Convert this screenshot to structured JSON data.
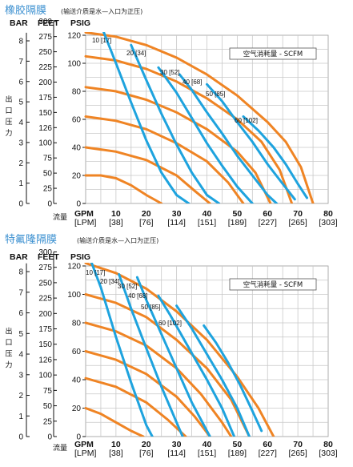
{
  "chart_data": [
    {
      "type": "line",
      "title": "橡胶隔膜",
      "subtitle": "(输送介质是水—入口为正压)",
      "axis_units": [
        "BAR",
        "FEET",
        "PSIG"
      ],
      "x_axis_label": "流量",
      "x_unit_primary": "GPM",
      "x_unit_secondary": "[LPM]",
      "x_ticks": [
        "10",
        "20",
        "30",
        "40",
        "50",
        "60",
        "70",
        "80"
      ],
      "x_ticks_lpm": [
        "[38]",
        "[76]",
        "[114]",
        "[151]",
        "[189]",
        "[227]",
        "[265]",
        "[303]"
      ],
      "y_axis_label": "出口压力",
      "bar_ticks": [
        "0",
        "1",
        "2",
        "3",
        "4",
        "5",
        "6",
        "7",
        "8"
      ],
      "feet_ticks": [
        "0",
        "25",
        "50",
        "75",
        "100",
        "126",
        "150",
        "175",
        "200",
        "225",
        "250",
        "275",
        "300"
      ],
      "psig_ticks": [
        "0",
        "20",
        "40",
        "60",
        "80",
        "100",
        "120"
      ],
      "xlim": [
        0,
        80
      ],
      "ylim": [
        0,
        120
      ],
      "legend": "空气消耗量 - SCFM",
      "air_labels": [
        "10 [17]",
        "20 [34]",
        "30 [52]",
        "40 [68]",
        "50 [85]",
        "60 [102]"
      ],
      "series_orange": [
        [
          [
            0,
            122
          ],
          [
            10,
            119
          ],
          [
            20,
            113
          ],
          [
            30,
            104
          ],
          [
            40,
            92
          ],
          [
            50,
            77
          ],
          [
            60,
            58
          ],
          [
            66,
            44
          ],
          [
            71,
            26
          ],
          [
            75,
            0
          ]
        ],
        [
          [
            0,
            105
          ],
          [
            10,
            102
          ],
          [
            20,
            96
          ],
          [
            30,
            87
          ],
          [
            40,
            75
          ],
          [
            50,
            60
          ],
          [
            58,
            44
          ],
          [
            64,
            24
          ],
          [
            68,
            0
          ]
        ],
        [
          [
            0,
            83
          ],
          [
            10,
            80
          ],
          [
            20,
            74
          ],
          [
            30,
            65
          ],
          [
            40,
            53
          ],
          [
            50,
            37
          ],
          [
            56,
            22
          ],
          [
            61,
            0
          ]
        ],
        [
          [
            0,
            62
          ],
          [
            10,
            59
          ],
          [
            20,
            53
          ],
          [
            30,
            43
          ],
          [
            40,
            30
          ],
          [
            47,
            15
          ],
          [
            52,
            0
          ]
        ],
        [
          [
            0,
            40
          ],
          [
            10,
            37
          ],
          [
            20,
            31
          ],
          [
            30,
            20
          ],
          [
            36,
            9
          ],
          [
            41,
            0
          ]
        ],
        [
          [
            0,
            20
          ],
          [
            5,
            20
          ],
          [
            10,
            18
          ],
          [
            15,
            13
          ],
          [
            20,
            6
          ],
          [
            25,
            0
          ]
        ]
      ],
      "series_blue": [
        [
          [
            6,
            122
          ],
          [
            10,
            100
          ],
          [
            15,
            72
          ],
          [
            20,
            45
          ],
          [
            25,
            22
          ],
          [
            30,
            6
          ],
          [
            34,
            0
          ]
        ],
        [
          [
            15,
            113
          ],
          [
            20,
            88
          ],
          [
            25,
            64
          ],
          [
            30,
            42
          ],
          [
            35,
            22
          ],
          [
            40,
            6
          ],
          [
            44,
            0
          ]
        ],
        [
          [
            24,
            97
          ],
          [
            30,
            79
          ],
          [
            35,
            61
          ],
          [
            40,
            43
          ],
          [
            45,
            27
          ],
          [
            50,
            12
          ],
          [
            55,
            0
          ]
        ],
        [
          [
            31,
            92
          ],
          [
            35,
            81
          ],
          [
            40,
            65
          ],
          [
            45,
            50
          ],
          [
            50,
            34
          ],
          [
            55,
            20
          ],
          [
            60,
            6
          ],
          [
            63,
            0
          ]
        ],
        [
          [
            40,
            85
          ],
          [
            45,
            73
          ],
          [
            50,
            58
          ],
          [
            55,
            44
          ],
          [
            60,
            28
          ],
          [
            65,
            14
          ],
          [
            69,
            3
          ]
        ],
        [
          [
            52,
            62
          ],
          [
            57,
            52
          ],
          [
            62,
            40
          ],
          [
            66,
            28
          ],
          [
            70,
            14
          ],
          [
            73,
            4
          ]
        ]
      ]
    },
    {
      "type": "line",
      "title": "特氟隆隔膜",
      "subtitle": "(输送介质是水—入口为正压)",
      "axis_units": [
        "BAR",
        "FEET",
        "PSIG"
      ],
      "x_axis_label": "流量",
      "x_unit_primary": "GPM",
      "x_unit_secondary": "[LPM]",
      "x_ticks": [
        "10",
        "20",
        "30",
        "40",
        "50",
        "60",
        "70",
        "80"
      ],
      "x_ticks_lpm": [
        "[38]",
        "[76]",
        "[114]",
        "[151]",
        "[189]",
        "[227]",
        "[265]",
        "[303]"
      ],
      "y_axis_label": "出口压力",
      "bar_ticks": [
        "0",
        "1",
        "2",
        "3",
        "4",
        "5",
        "6",
        "7",
        "8"
      ],
      "feet_ticks": [
        "0",
        "25",
        "50",
        "75",
        "100",
        "126",
        "150",
        "175",
        "200",
        "225",
        "250",
        "275",
        "300"
      ],
      "psig_ticks": [
        "0",
        "20",
        "40",
        "60",
        "80",
        "100",
        "120"
      ],
      "xlim": [
        0,
        80
      ],
      "ylim": [
        0,
        120
      ],
      "legend": "空气消耗量 - SCFM",
      "air_labels": [
        "10 [17]",
        "20 [34]",
        "30 [52]",
        "40 [68]",
        "50 [85]",
        "60 [102]"
      ],
      "series_orange": [
        [
          [
            0,
            122
          ],
          [
            10,
            115
          ],
          [
            20,
            104
          ],
          [
            30,
            88
          ],
          [
            40,
            68
          ],
          [
            50,
            42
          ],
          [
            57,
            20
          ],
          [
            62,
            0
          ]
        ],
        [
          [
            0,
            100
          ],
          [
            10,
            94
          ],
          [
            20,
            84
          ],
          [
            30,
            68
          ],
          [
            40,
            48
          ],
          [
            48,
            26
          ],
          [
            54,
            0
          ]
        ],
        [
          [
            0,
            80
          ],
          [
            10,
            74
          ],
          [
            20,
            64
          ],
          [
            30,
            48
          ],
          [
            38,
            30
          ],
          [
            45,
            10
          ],
          [
            48,
            0
          ]
        ],
        [
          [
            0,
            60
          ],
          [
            10,
            54
          ],
          [
            20,
            44
          ],
          [
            30,
            28
          ],
          [
            36,
            14
          ],
          [
            41,
            0
          ]
        ],
        [
          [
            0,
            41
          ],
          [
            10,
            35
          ],
          [
            20,
            24
          ],
          [
            27,
            12
          ],
          [
            33,
            0
          ]
        ],
        [
          [
            0,
            20
          ],
          [
            5,
            16
          ],
          [
            10,
            10
          ],
          [
            15,
            4
          ],
          [
            19,
            0
          ]
        ]
      ],
      "series_blue": [
        [
          [
            2,
            122
          ],
          [
            5,
            105
          ],
          [
            10,
            70
          ],
          [
            15,
            38
          ],
          [
            20,
            8
          ],
          [
            22,
            0
          ]
        ],
        [
          [
            11,
            114
          ],
          [
            15,
            90
          ],
          [
            20,
            62
          ],
          [
            25,
            35
          ],
          [
            30,
            10
          ],
          [
            32,
            0
          ]
        ],
        [
          [
            17,
            112
          ],
          [
            20,
            96
          ],
          [
            25,
            72
          ],
          [
            30,
            48
          ],
          [
            35,
            24
          ],
          [
            40,
            4
          ],
          [
            41,
            0
          ]
        ],
        [
          [
            24,
            99
          ],
          [
            28,
            85
          ],
          [
            32,
            70
          ],
          [
            36,
            55
          ],
          [
            40,
            40
          ],
          [
            45,
            20
          ],
          [
            49,
            0
          ]
        ],
        [
          [
            30,
            92
          ],
          [
            35,
            76
          ],
          [
            40,
            58
          ],
          [
            45,
            40
          ],
          [
            50,
            20
          ],
          [
            54,
            0
          ]
        ],
        [
          [
            39,
            78
          ],
          [
            43,
            66
          ],
          [
            47,
            52
          ],
          [
            51,
            36
          ],
          [
            55,
            18
          ],
          [
            58,
            4
          ]
        ]
      ]
    }
  ]
}
